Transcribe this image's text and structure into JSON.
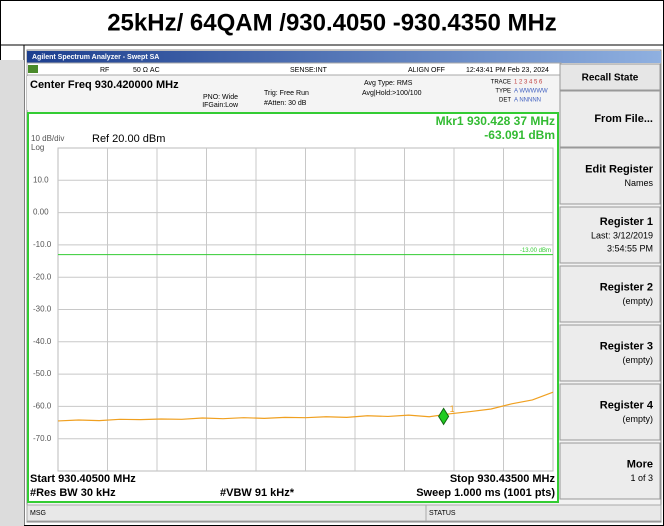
{
  "header": {
    "title": "25kHz/ 64QAM /930.4050 -930.4350 MHz"
  },
  "window_title": "Agilent Spectrum Analyzer - Swept SA",
  "status_row": {
    "rf": "RF",
    "impedance": "50 Ω  AC",
    "sense": "SENSE:INT",
    "align": "ALIGN OFF",
    "datetime": "12:43:41 PM Feb 23, 2024"
  },
  "settings": {
    "center_freq": "Center Freq 930.420000 MHz",
    "pno": "PNO: Wide",
    "ifgain": "IFGain:Low",
    "trig": "Trig: Free Run",
    "atten": "#Atten: 30 dB",
    "avg_type": "Avg Type: RMS",
    "avg_hold": "Avg|Hold:>100/100",
    "trace": "TRACE",
    "trace_nums": "1 2 3 4 5 6",
    "type": "TYPE",
    "type_vals": "A WWWWW",
    "det": "DET",
    "det_vals": "A NNNNN"
  },
  "plot": {
    "scale": "10 dB/div",
    "log": "Log",
    "ref": "Ref 20.00 dBm",
    "marker_readout": [
      "Mkr1 930.428 37 MHz",
      "-63.091 dBm"
    ],
    "ylim": [
      -80,
      20
    ],
    "yticks": [
      {
        "value": 10,
        "label": "10.0"
      },
      {
        "value": 0,
        "label": "0.00"
      },
      {
        "value": -10,
        "label": "-10.0"
      },
      {
        "value": -20,
        "label": "-20.0"
      },
      {
        "value": -30,
        "label": "-30.0"
      },
      {
        "value": -40,
        "label": "-40.0"
      },
      {
        "value": -50,
        "label": "-50.0"
      },
      {
        "value": -60,
        "label": "-60.0"
      },
      {
        "value": -70,
        "label": "-70.0"
      }
    ],
    "xlim": [
      930.405,
      930.435
    ],
    "display_line": {
      "value": -13,
      "label": "-13.00 dBm",
      "color": "#33cc33"
    },
    "trace": {
      "color": "#f0a020",
      "x": [
        930.405,
        930.40625,
        930.4075,
        930.40875,
        930.41,
        930.41125,
        930.4125,
        930.41375,
        930.415,
        930.41625,
        930.4175,
        930.41875,
        930.42,
        930.42125,
        930.4225,
        930.42375,
        930.425,
        930.42625,
        930.4275,
        930.42875,
        930.43,
        930.43125,
        930.4325,
        930.43375,
        930.435
      ],
      "values": [
        -64.5,
        -64.2,
        -64.4,
        -64.0,
        -64.1,
        -63.9,
        -64.0,
        -63.6,
        -63.8,
        -63.5,
        -63.7,
        -63.4,
        -63.5,
        -63.2,
        -63.4,
        -62.9,
        -63.1,
        -62.7,
        -63.2,
        -62.3,
        -61.6,
        -60.8,
        -59.2,
        -58.0,
        -55.6
      ]
    },
    "marker": {
      "label": "1",
      "x": 930.42837,
      "y": -63.091,
      "color": "#22cc22"
    }
  },
  "footer": {
    "start": "Start 930.40500 MHz",
    "stop": "Stop 930.43500 MHz",
    "rbw": "#Res BW 30 kHz",
    "vbw": "#VBW 91 kHz*",
    "sweep": "Sweep  1.000 ms (1001 pts)"
  },
  "status_bar": {
    "msg": "MSG",
    "status": "STATUS"
  },
  "softkeys": {
    "title": "Recall State",
    "keys": [
      {
        "lines": [
          "From File..."
        ]
      },
      {
        "lines": [
          "Edit Register",
          "Names"
        ]
      },
      {
        "lines": [
          "Register 1",
          "Last: 3/12/2019",
          "3:54:55 PM"
        ]
      },
      {
        "lines": [
          "Register 2",
          "(empty)"
        ]
      },
      {
        "lines": [
          "Register 3",
          "(empty)"
        ]
      },
      {
        "lines": [
          "Register 4",
          "(empty)"
        ]
      },
      {
        "lines": [
          "More",
          "1 of 3"
        ]
      }
    ]
  }
}
